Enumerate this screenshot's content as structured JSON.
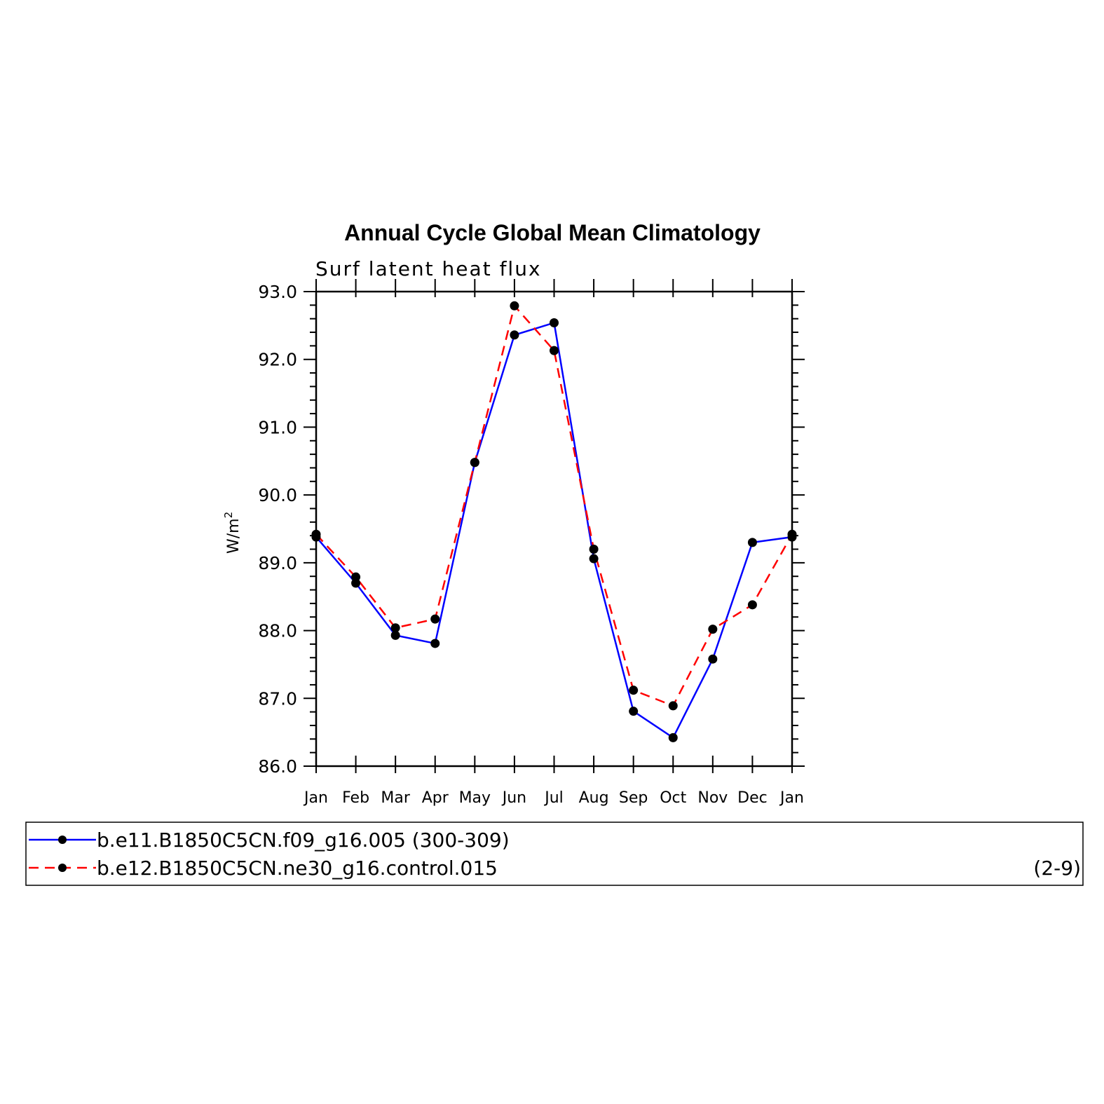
{
  "chart_data": {
    "type": "line",
    "title": "Annual Cycle Global Mean Climatology",
    "subtitle": "Surf latent heat flux",
    "ylabel": "W/m",
    "ylabel_sup": "2",
    "ylim": [
      86.0,
      93.0
    ],
    "y_ticks": [
      "86.0",
      "87.0",
      "88.0",
      "89.0",
      "90.0",
      "91.0",
      "92.0",
      "93.0"
    ],
    "categories": [
      "Jan",
      "Feb",
      "Mar",
      "Apr",
      "May",
      "Jun",
      "Jul",
      "Aug",
      "Sep",
      "Oct",
      "Nov",
      "Dec",
      "Jan"
    ],
    "grid": false,
    "legend_position": "bottom",
    "series": [
      {
        "name": "b.e11.B1850C5CN.f09_g16.005 (300-309)",
        "color": "#0000ff",
        "dash": "solid",
        "values": [
          89.38,
          88.7,
          87.93,
          87.81,
          90.48,
          92.36,
          92.54,
          89.06,
          86.81,
          86.42,
          87.58,
          89.3,
          89.38
        ]
      },
      {
        "name": "b.e12.B1850C5CN.ne30_g16.control.015",
        "name_suffix": "(2-9)",
        "color": "#ff0000",
        "dash": "dashed",
        "values": [
          89.42,
          88.79,
          88.04,
          88.17,
          90.48,
          92.79,
          92.13,
          89.2,
          87.12,
          86.89,
          88.02,
          88.38,
          89.42
        ]
      }
    ]
  }
}
